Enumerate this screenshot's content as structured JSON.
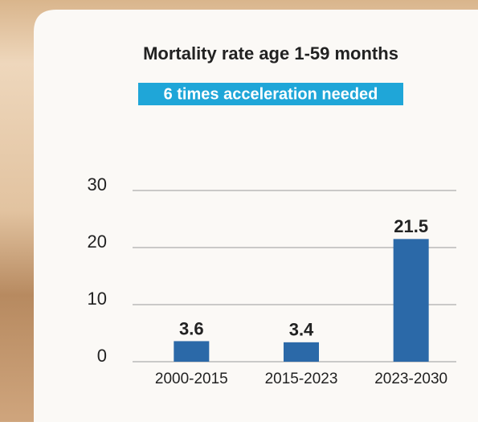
{
  "chart_data": {
    "type": "bar",
    "title": "Mortality rate age 1-59 months",
    "subtitle": "6 times acceleration needed",
    "categories": [
      "2000-2015",
      "2015-2023",
      "2023-2030"
    ],
    "values": [
      3.6,
      3.4,
      21.5
    ],
    "color": "#2b69a8",
    "ylim": [
      0,
      30
    ],
    "yticks": [
      0,
      10,
      20,
      30
    ],
    "grid": true
  }
}
